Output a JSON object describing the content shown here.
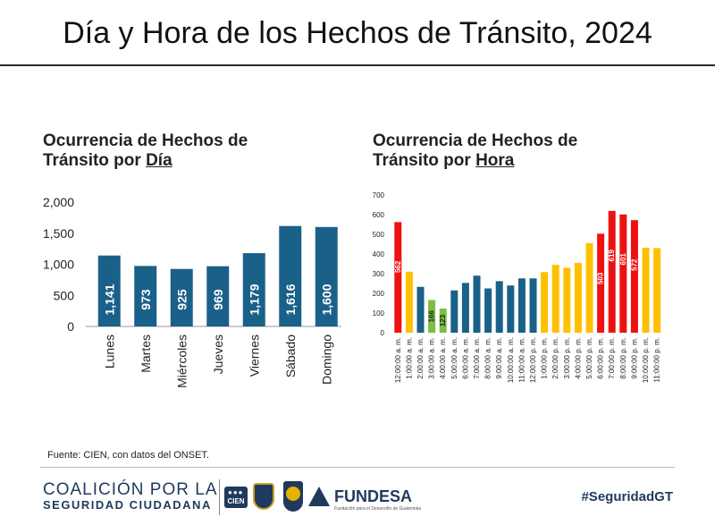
{
  "header": {
    "title": "Día y Hora de los Hechos de Tránsito, 2024"
  },
  "left_chart": {
    "title_line1": "Ocurrencia de Hechos de",
    "title_line2_prefix": "Tránsito por ",
    "title_line2_underlined": "Día"
  },
  "right_chart": {
    "title_line1": "Ocurrencia de Hechos de",
    "title_line2_prefix": "Tránsito por ",
    "title_line2_underlined": "Hora"
  },
  "chart_data": [
    {
      "type": "bar",
      "title": "Ocurrencia de Hechos de Tránsito por Día",
      "categories": [
        "Lunes",
        "Martes",
        "Miércoles",
        "Jueves",
        "Viernes",
        "Sábado",
        "Domingo"
      ],
      "values": [
        1141,
        973,
        925,
        969,
        1179,
        1616,
        1600
      ],
      "value_labels": [
        "1,141",
        "973",
        "925",
        "969",
        "1,179",
        "1,616",
        "1,600"
      ],
      "ylim": [
        0,
        2000
      ],
      "yticks": [
        0,
        500,
        1000,
        1500,
        2000
      ],
      "ytick_labels": [
        "0",
        "500",
        "1,000",
        "1,500",
        "2,000"
      ],
      "color": "#1a6189",
      "xlabel": "",
      "ylabel": ""
    },
    {
      "type": "bar",
      "title": "Ocurrencia de Hechos de Tránsito por Hora",
      "categories": [
        "12:00:00 a. m.",
        "1:00:00 a. m.",
        "2:00:00 a. m.",
        "3:00:00 a. m.",
        "4:00:00 a. m.",
        "5:00:00 a. m.",
        "6:00:00 a. m.",
        "7:00:00 a. m.",
        "8:00:00 a. m.",
        "9:00:00 a. m.",
        "10:00:00 a. m.",
        "11:00:00 a. m.",
        "12:00:00 p. m.",
        "1:00:00 p. m.",
        "2:00:00 p. m.",
        "3:00:00 p. m.",
        "4:00:00 p. m.",
        "5:00:00 p. m.",
        "6:00:00 p. m.",
        "7:00:00 p. m.",
        "8:00:00 p. m.",
        "9:00:00 p. m.",
        "10:00:00 p. m.",
        "11:00:00 p. m."
      ],
      "values": [
        562,
        310,
        233,
        166,
        123,
        215,
        253,
        290,
        225,
        262,
        240,
        276,
        276,
        308,
        345,
        330,
        355,
        455,
        503,
        619,
        601,
        572,
        432,
        430
      ],
      "colors": [
        "#ee1111",
        "#ffc000",
        "#1a6189",
        "#7bbf44",
        "#7bbf44",
        "#1a6189",
        "#1a6189",
        "#1a6189",
        "#1a6189",
        "#1a6189",
        "#1a6189",
        "#1a6189",
        "#1a6189",
        "#ffc000",
        "#ffc000",
        "#ffc000",
        "#ffc000",
        "#ffc000",
        "#ee1111",
        "#ee1111",
        "#ee1111",
        "#ee1111",
        "#ffc000",
        "#ffc000"
      ],
      "bar_labels": [
        "562",
        "",
        "",
        "166",
        "123",
        "",
        "",
        "",
        "",
        "",
        "",
        "",
        "",
        "",
        "",
        "",
        "",
        "",
        "503",
        "619",
        "601",
        "572",
        "",
        ""
      ],
      "ylim": [
        0,
        700
      ],
      "yticks": [
        0,
        100,
        200,
        300,
        400,
        500,
        600,
        700
      ],
      "ytick_labels": [
        "0",
        "100",
        "200",
        "300",
        "400",
        "500",
        "600",
        "700"
      ],
      "xlabel": "",
      "ylabel": ""
    }
  ],
  "footer": {
    "source": "Fuente: CIEN, con datos del ONSET.",
    "coalition_line1": "COALICIÓN POR LA",
    "coalition_line2": "SEGURIDAD CIUDADANA",
    "cien_logo_text": "CIEN",
    "fundesa": "FUNDESA",
    "fundesa_tagline": "Fundación para el Desarrollo de Guatemala",
    "hashtag": "#SeguridadGT"
  }
}
